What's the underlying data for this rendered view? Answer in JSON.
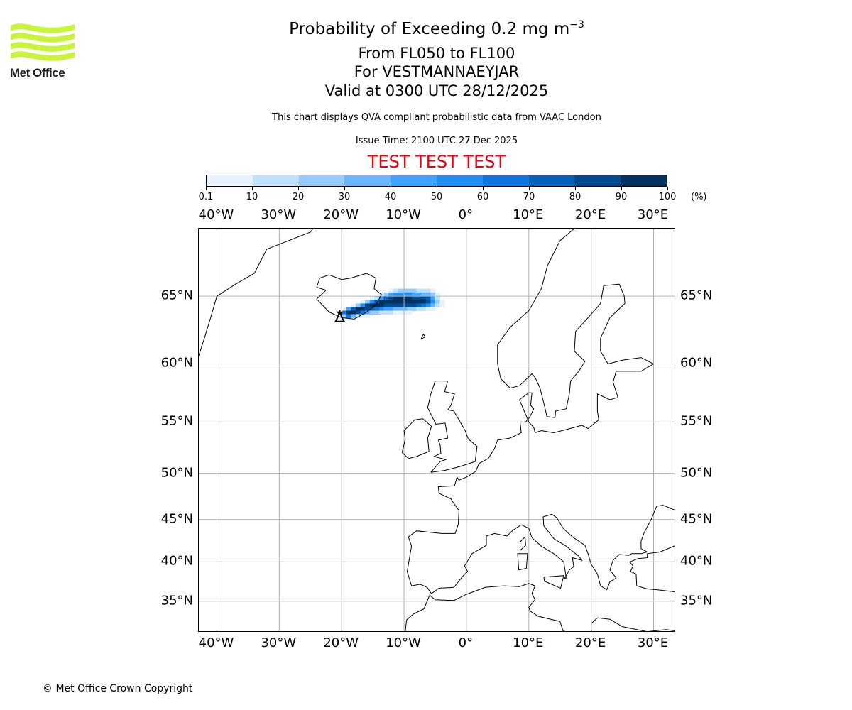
{
  "logo": {
    "text": "Met Office",
    "color": "#c8f53c"
  },
  "header": {
    "title_main": "Probability of Exceeding 0.2 mg m",
    "title_exponent": "−3",
    "flight_levels": "From FL050 to FL100",
    "volcano_line": "For VESTMANNAEYJAR",
    "valid_line": "Valid at 0300 UTC 28/12/2025",
    "description": "This chart displays QVA compliant probabilistic data from VAAC London",
    "issue_time": "Issue Time: 2100 UTC 27 Dec 2025",
    "test_banner": "TEST TEST TEST"
  },
  "colorbar": {
    "unit": "(%)",
    "ticks": [
      "0.1",
      "10",
      "20",
      "30",
      "40",
      "50",
      "60",
      "70",
      "80",
      "90",
      "100"
    ],
    "bounds": [
      0.1,
      10,
      20,
      30,
      40,
      50,
      60,
      70,
      80,
      90,
      100
    ],
    "colors": [
      "#e6f3ff",
      "#bfe1fd",
      "#96cbfd",
      "#6bb7fd",
      "#3ea3fe",
      "#1f8ff2",
      "#0d77dc",
      "#0062b9",
      "#004a90",
      "#00305e"
    ]
  },
  "chart_data": {
    "type": "heatmap",
    "projection": "mercator",
    "lon_range": [
      -42.9,
      33.6
    ],
    "lat_range": [
      30.9,
      69.2
    ],
    "lon_ticks": [
      -40,
      -30,
      -20,
      -10,
      0,
      10,
      20,
      30
    ],
    "lon_labels": [
      "40°W",
      "30°W",
      "20°W",
      "10°W",
      "0°",
      "10°E",
      "20°E",
      "30°E"
    ],
    "lat_ticks": [
      35,
      40,
      45,
      50,
      55,
      60,
      65
    ],
    "lat_labels": [
      "35°N",
      "40°N",
      "45°N",
      "50°N",
      "55°N",
      "60°N",
      "65°N"
    ],
    "volcano": {
      "name": "VESTMANNAEYJAR",
      "lon": -20.3,
      "lat": 63.43
    },
    "grid": {
      "lon_start": -20,
      "lon_step": 0.75,
      "lat_step": 0.25,
      "rows": [
        {
          "lat": 65.25,
          "values": [
            0,
            0,
            0,
            0,
            0,
            0,
            0,
            0,
            0,
            0,
            5,
            15,
            20,
            20,
            20,
            20,
            15,
            15,
            10,
            5,
            0,
            0,
            0
          ]
        },
        {
          "lat": 65.0,
          "values": [
            0,
            0,
            0,
            0,
            0,
            0,
            0,
            0,
            5,
            20,
            40,
            50,
            50,
            50,
            50,
            45,
            40,
            35,
            30,
            20,
            5,
            0,
            0
          ]
        },
        {
          "lat": 64.75,
          "values": [
            0,
            0,
            0,
            0,
            0,
            0,
            5,
            15,
            40,
            70,
            85,
            90,
            92,
            92,
            90,
            88,
            85,
            80,
            70,
            40,
            15,
            0,
            0
          ]
        },
        {
          "lat": 64.5,
          "values": [
            0,
            0,
            0,
            0,
            5,
            20,
            50,
            75,
            90,
            95,
            95,
            95,
            95,
            95,
            95,
            95,
            92,
            90,
            85,
            55,
            20,
            5,
            0
          ]
        },
        {
          "lat": 64.25,
          "values": [
            0,
            0,
            5,
            20,
            55,
            80,
            90,
            92,
            90,
            88,
            85,
            85,
            88,
            85,
            82,
            80,
            75,
            65,
            50,
            30,
            10,
            5,
            0
          ]
        },
        {
          "lat": 64.0,
          "values": [
            5,
            40,
            75,
            90,
            92,
            85,
            75,
            60,
            50,
            45,
            40,
            35,
            30,
            30,
            25,
            20,
            15,
            10,
            5,
            5,
            0,
            0,
            0
          ]
        },
        {
          "lat": 63.75,
          "values": [
            60,
            95,
            95,
            80,
            60,
            40,
            25,
            20,
            15,
            10,
            10,
            5,
            5,
            5,
            5,
            0,
            0,
            0,
            0,
            0,
            0,
            0,
            0
          ]
        },
        {
          "lat": 63.5,
          "values": [
            20,
            60,
            30,
            15,
            5,
            5,
            0,
            0,
            0,
            0,
            0,
            0,
            0,
            0,
            0,
            0,
            0,
            0,
            0,
            0,
            0,
            0,
            0
          ]
        }
      ]
    }
  },
  "footer": {
    "copyright": "© Met Office Crown Copyright"
  }
}
